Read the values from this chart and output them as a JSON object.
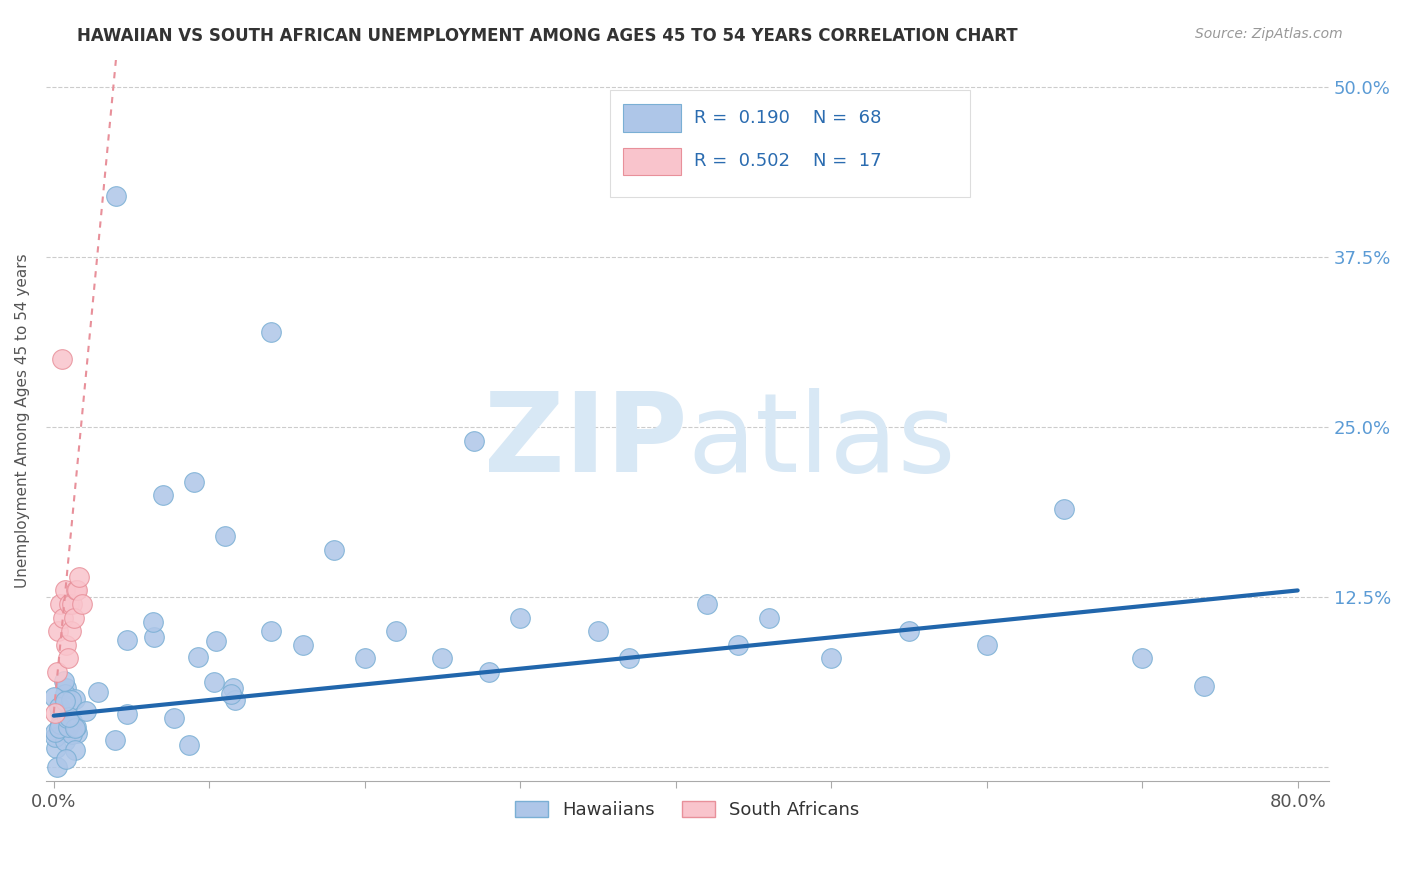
{
  "title": "HAWAIIAN VS SOUTH AFRICAN UNEMPLOYMENT AMONG AGES 45 TO 54 YEARS CORRELATION CHART",
  "source_text": "Source: ZipAtlas.com",
  "ylabel": "Unemployment Among Ages 45 to 54 years",
  "xlim": [
    -0.005,
    0.82
  ],
  "ylim": [
    -0.01,
    0.52
  ],
  "yticks": [
    0.0,
    0.125,
    0.25,
    0.375,
    0.5
  ],
  "ytick_labels": [
    "",
    "12.5%",
    "25.0%",
    "37.5%",
    "50.0%"
  ],
  "hawaiian_color": "#aec6e8",
  "hawaiian_edge_color": "#7aafd4",
  "south_african_color": "#f9c4cc",
  "south_african_edge_color": "#e8909a",
  "hawaiian_R": 0.19,
  "hawaiian_N": 68,
  "south_african_R": 0.502,
  "south_african_N": 17,
  "hawaiian_line_color": "#2166ac",
  "south_african_line_color": "#e8909a",
  "watermark_zip": "ZIP",
  "watermark_atlas": "atlas",
  "watermark_color": "#d8e8f5",
  "legend_color": "#2b6cb0"
}
